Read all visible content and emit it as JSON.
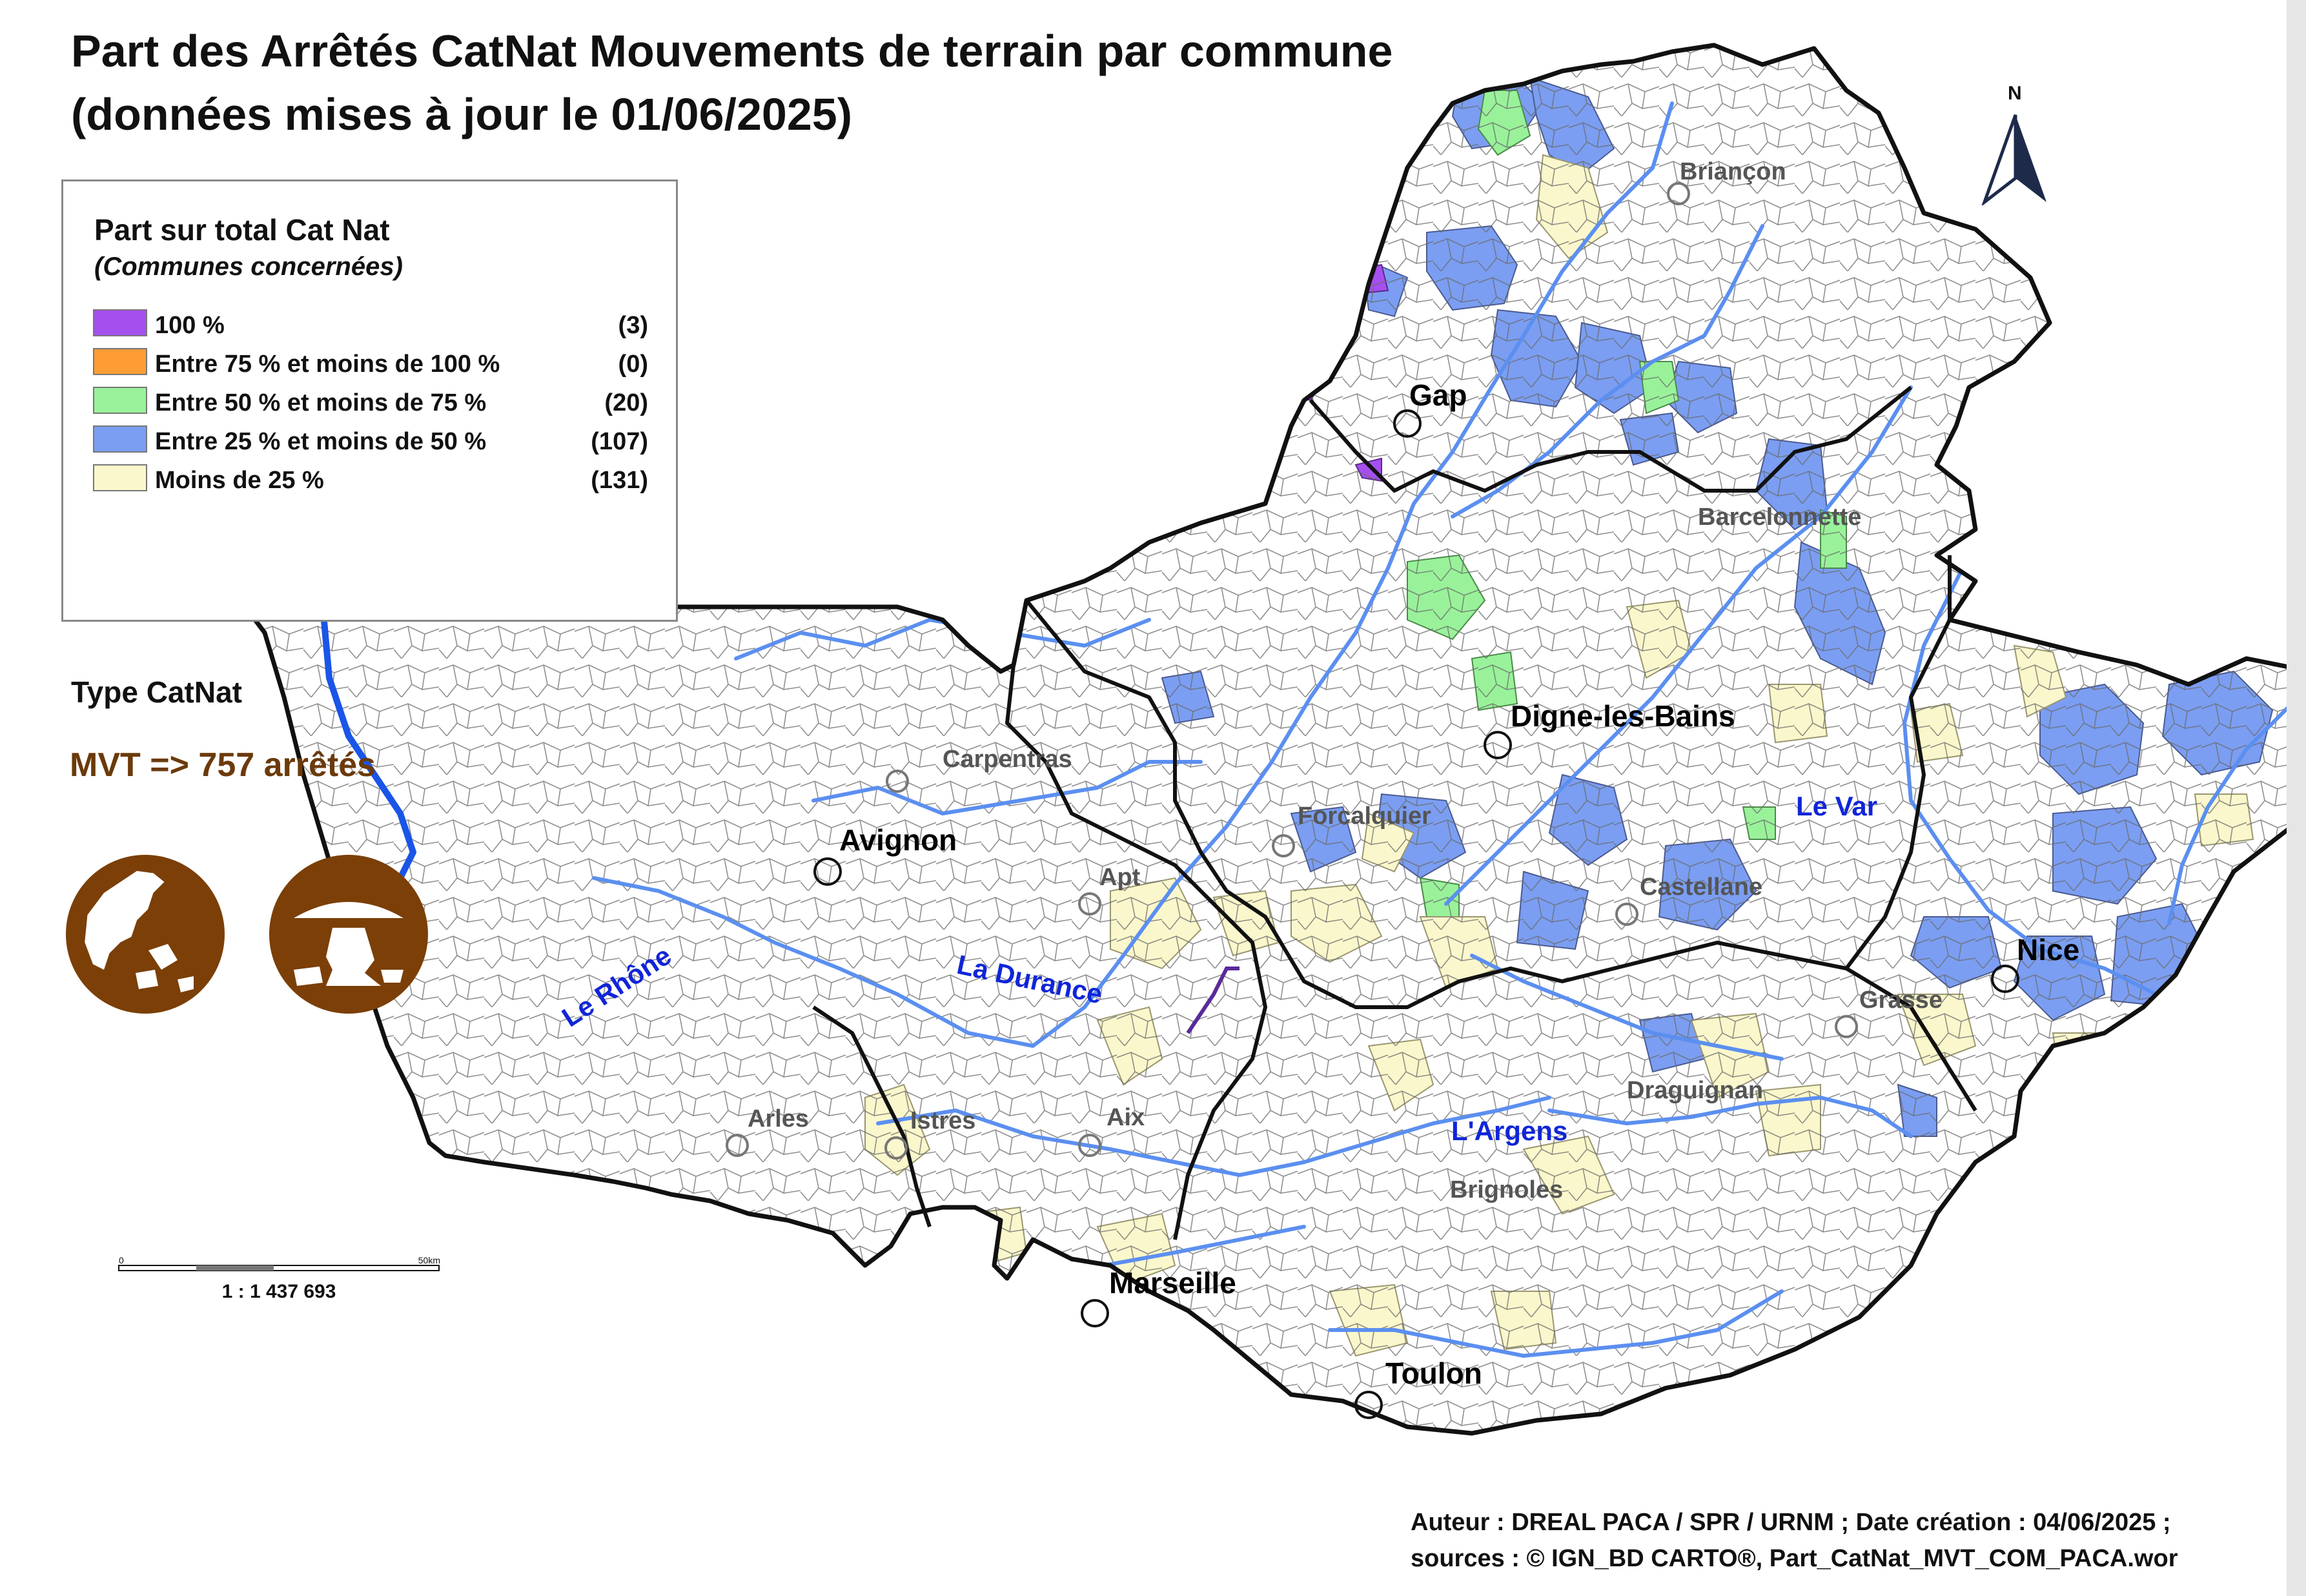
{
  "title": {
    "line1": "Part des Arrêtés CatNat Mouvements de terrain par commune",
    "line2": "(données mises à jour le 01/06/2025)"
  },
  "legend": {
    "title": "Part sur total Cat Nat",
    "subtitle": "(Communes concernées)",
    "items": [
      {
        "label": "100  %",
        "count": "(3)",
        "color": "#a64fef"
      },
      {
        "label": "Entre 75 % et moins de 100 %",
        "count": "(0)",
        "color": "#ff9d35"
      },
      {
        "label": "Entre 50 % et moins de 75 %",
        "count": "(20)",
        "color": "#99f29a"
      },
      {
        "label": "Entre 25 % et moins de 50 %",
        "count": "(107)",
        "color": "#7b9ef2"
      },
      {
        "label": "Moins de 25 %",
        "count": "(131)",
        "color": "#fbf7cc"
      }
    ]
  },
  "catnat_type": {
    "heading": "Type CatNat",
    "summary": "MVT => 757 arrêtés",
    "icon_color": "#7b3f07",
    "icons": [
      "landslide-icon",
      "cliff-collapse-icon"
    ]
  },
  "scale": {
    "label": "1 : 1 437 693",
    "tick_start": "0",
    "tick_end": "50km"
  },
  "north": "N",
  "cities_major": [
    {
      "name": "Gap"
    },
    {
      "name": "Digne-les-Bains"
    },
    {
      "name": "Avignon"
    },
    {
      "name": "Nice"
    },
    {
      "name": "Marseille"
    },
    {
      "name": "Toulon"
    }
  ],
  "cities_minor": [
    {
      "name": "Briançon"
    },
    {
      "name": "Barcelonnette"
    },
    {
      "name": "Carpentras"
    },
    {
      "name": "Forcalquier"
    },
    {
      "name": "Apt"
    },
    {
      "name": "Castellane"
    },
    {
      "name": "Grasse"
    },
    {
      "name": "Draguignan"
    },
    {
      "name": "Arles"
    },
    {
      "name": "Istres"
    },
    {
      "name": "Aix"
    },
    {
      "name": "Brignoles"
    }
  ],
  "rivers": [
    {
      "name": "Le Rhône"
    },
    {
      "name": "La Durance"
    },
    {
      "name": "Le Var"
    },
    {
      "name": "L'Argens"
    }
  ],
  "credits": {
    "line1": "Auteur : DREAL PACA / SPR / URNM ; Date création : 04/06/2025  ;",
    "line2": "sources : © IGN_BD CARTO®, Part_CatNat_MVT_COM_PACA.wor"
  },
  "colors": {
    "boundary": "#111111",
    "river": "#5b8ff0",
    "river_major": "#1a55e8",
    "commune_line": "#555555"
  }
}
